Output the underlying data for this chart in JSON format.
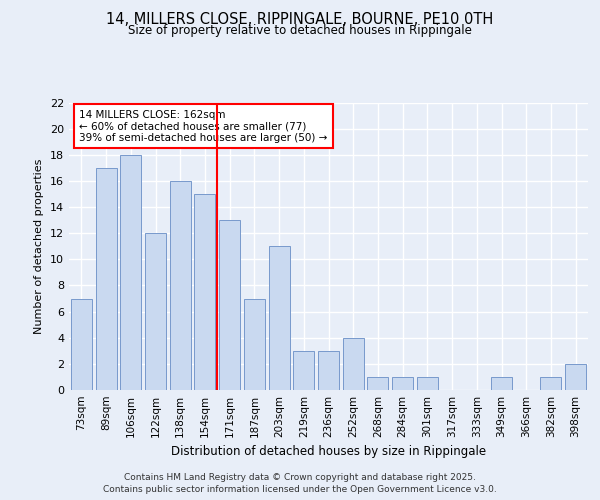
{
  "title_line1": "14, MILLERS CLOSE, RIPPINGALE, BOURNE, PE10 0TH",
  "title_line2": "Size of property relative to detached houses in Rippingale",
  "xlabel": "Distribution of detached houses by size in Rippingale",
  "ylabel": "Number of detached properties",
  "categories": [
    "73sqm",
    "89sqm",
    "106sqm",
    "122sqm",
    "138sqm",
    "154sqm",
    "171sqm",
    "187sqm",
    "203sqm",
    "219sqm",
    "236sqm",
    "252sqm",
    "268sqm",
    "284sqm",
    "301sqm",
    "317sqm",
    "333sqm",
    "349sqm",
    "366sqm",
    "382sqm",
    "398sqm"
  ],
  "values": [
    7,
    17,
    18,
    12,
    16,
    15,
    13,
    7,
    11,
    3,
    3,
    4,
    1,
    1,
    1,
    0,
    0,
    1,
    0,
    1,
    2
  ],
  "bar_color": "#c9d9f0",
  "bar_edge_color": "#7799cc",
  "vline_x": 5.5,
  "vline_color": "red",
  "annotation_text": "14 MILLERS CLOSE: 162sqm\n← 60% of detached houses are smaller (77)\n39% of semi-detached houses are larger (50) →",
  "annotation_box_color": "white",
  "annotation_box_edge": "red",
  "ylim": [
    0,
    22
  ],
  "yticks": [
    0,
    2,
    4,
    6,
    8,
    10,
    12,
    14,
    16,
    18,
    20,
    22
  ],
  "background_color": "#e8eef8",
  "grid_color": "white",
  "footer_line1": "Contains HM Land Registry data © Crown copyright and database right 2025.",
  "footer_line2": "Contains public sector information licensed under the Open Government Licence v3.0."
}
